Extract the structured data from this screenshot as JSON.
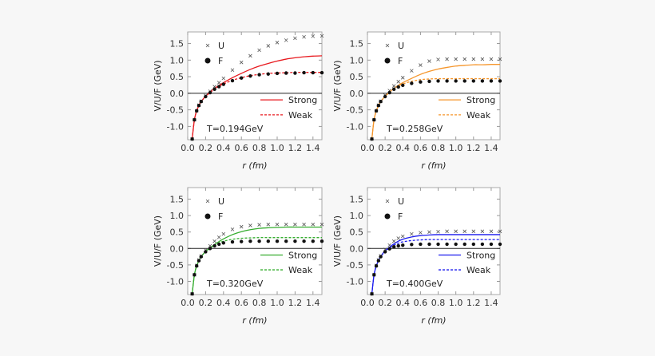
{
  "chart_data": [
    {
      "type": "line",
      "annotation": "T=0.194GeV",
      "xlabel": "r (fm)",
      "ylabel": "V/U/F (GeV)",
      "xlim": [
        0,
        1.5
      ],
      "ylim": [
        -1.4,
        1.85
      ],
      "xticks": [
        "0.0",
        "0.2",
        "0.4",
        "0.6",
        "0.8",
        "1.0",
        "1.2",
        "1.4"
      ],
      "yticks": [
        "-1.0",
        "-0.5",
        "0.0",
        "0.5",
        "1.0",
        "1.5"
      ],
      "color": "#e8191e",
      "x": [
        0.05,
        0.075,
        0.1,
        0.125,
        0.15,
        0.2,
        0.25,
        0.3,
        0.35,
        0.4,
        0.5,
        0.6,
        0.7,
        0.8,
        0.9,
        1.0,
        1.1,
        1.2,
        1.3,
        1.4,
        1.5
      ],
      "series": [
        {
          "name": "U",
          "style": "cross",
          "values": [
            -1.38,
            -0.8,
            -0.53,
            -0.36,
            -0.24,
            -0.07,
            0.06,
            0.2,
            0.32,
            0.45,
            0.7,
            0.93,
            1.13,
            1.3,
            1.43,
            1.53,
            1.6,
            1.66,
            1.7,
            1.72,
            1.73
          ]
        },
        {
          "name": "F",
          "style": "dot",
          "values": [
            -1.38,
            -0.8,
            -0.53,
            -0.37,
            -0.25,
            -0.1,
            0.02,
            0.12,
            0.2,
            0.27,
            0.38,
            0.46,
            0.52,
            0.56,
            0.58,
            0.6,
            0.61,
            0.61,
            0.62,
            0.62,
            0.62
          ]
        },
        {
          "name": "Strong",
          "style": "solid",
          "values": [
            -1.38,
            -0.8,
            -0.53,
            -0.37,
            -0.25,
            -0.09,
            0.04,
            0.15,
            0.24,
            0.32,
            0.47,
            0.6,
            0.72,
            0.82,
            0.9,
            0.97,
            1.03,
            1.07,
            1.1,
            1.12,
            1.13
          ]
        },
        {
          "name": "Weak",
          "style": "dashed",
          "values": [
            -1.38,
            -0.8,
            -0.53,
            -0.37,
            -0.25,
            -0.1,
            0.02,
            0.12,
            0.21,
            0.28,
            0.39,
            0.47,
            0.53,
            0.57,
            0.6,
            0.61,
            0.62,
            0.63,
            0.63,
            0.63,
            0.63
          ]
        }
      ]
    },
    {
      "type": "line",
      "annotation": "T=0.258GeV",
      "xlabel": "r (fm)",
      "ylabel": "V/U/F (GeV)",
      "xlim": [
        0,
        1.5
      ],
      "ylim": [
        -1.4,
        1.85
      ],
      "xticks": [
        "0.0",
        "0.2",
        "0.4",
        "0.6",
        "0.8",
        "1.0",
        "1.2",
        "1.4"
      ],
      "yticks": [
        "-1.0",
        "-0.5",
        "0.0",
        "0.5",
        "1.0",
        "1.5"
      ],
      "color": "#f5962c",
      "x": [
        0.05,
        0.075,
        0.1,
        0.125,
        0.15,
        0.2,
        0.25,
        0.3,
        0.35,
        0.4,
        0.5,
        0.6,
        0.7,
        0.8,
        0.9,
        1.0,
        1.1,
        1.2,
        1.3,
        1.4,
        1.5
      ],
      "series": [
        {
          "name": "U",
          "style": "cross",
          "values": [
            -1.38,
            -0.8,
            -0.53,
            -0.36,
            -0.24,
            -0.06,
            0.08,
            0.22,
            0.35,
            0.47,
            0.68,
            0.85,
            0.97,
            1.02,
            1.03,
            1.03,
            1.03,
            1.03,
            1.03,
            1.03,
            1.03
          ]
        },
        {
          "name": "F",
          "style": "dot",
          "values": [
            -1.38,
            -0.8,
            -0.53,
            -0.37,
            -0.25,
            -0.1,
            0.02,
            0.12,
            0.19,
            0.24,
            0.3,
            0.34,
            0.36,
            0.37,
            0.37,
            0.37,
            0.37,
            0.37,
            0.37,
            0.37,
            0.37
          ]
        },
        {
          "name": "Strong",
          "style": "solid",
          "values": [
            -1.38,
            -0.8,
            -0.53,
            -0.37,
            -0.25,
            -0.09,
            0.04,
            0.15,
            0.24,
            0.32,
            0.45,
            0.57,
            0.66,
            0.73,
            0.78,
            0.82,
            0.84,
            0.86,
            0.86,
            0.87,
            0.87
          ]
        },
        {
          "name": "Weak",
          "style": "dashed",
          "values": [
            -1.38,
            -0.8,
            -0.53,
            -0.37,
            -0.25,
            -0.1,
            0.03,
            0.14,
            0.22,
            0.28,
            0.36,
            0.41,
            0.43,
            0.44,
            0.44,
            0.44,
            0.44,
            0.44,
            0.44,
            0.44,
            0.44
          ]
        }
      ]
    },
    {
      "type": "line",
      "annotation": "T=0.320GeV",
      "xlabel": "r (fm)",
      "ylabel": "V/U/F (GeV)",
      "xlim": [
        0,
        1.5
      ],
      "ylim": [
        -1.4,
        1.85
      ],
      "xticks": [
        "0.0",
        "0.2",
        "0.4",
        "0.6",
        "0.8",
        "1.0",
        "1.2",
        "1.4"
      ],
      "yticks": [
        "-1.0",
        "-0.5",
        "0.0",
        "0.5",
        "1.0",
        "1.5"
      ],
      "color": "#35ad2f",
      "x": [
        0.05,
        0.075,
        0.1,
        0.125,
        0.15,
        0.2,
        0.25,
        0.3,
        0.35,
        0.4,
        0.5,
        0.6,
        0.7,
        0.8,
        0.9,
        1.0,
        1.1,
        1.2,
        1.3,
        1.4,
        1.5
      ],
      "series": [
        {
          "name": "U",
          "style": "cross",
          "values": [
            -1.38,
            -0.8,
            -0.52,
            -0.35,
            -0.23,
            -0.05,
            0.08,
            0.22,
            0.34,
            0.44,
            0.58,
            0.66,
            0.7,
            0.72,
            0.73,
            0.73,
            0.73,
            0.73,
            0.73,
            0.73,
            0.73
          ]
        },
        {
          "name": "F",
          "style": "dot",
          "values": [
            -1.38,
            -0.8,
            -0.53,
            -0.37,
            -0.25,
            -0.1,
            0.0,
            0.08,
            0.13,
            0.17,
            0.2,
            0.21,
            0.22,
            0.22,
            0.22,
            0.22,
            0.22,
            0.22,
            0.22,
            0.22,
            0.22
          ]
        },
        {
          "name": "Strong",
          "style": "solid",
          "values": [
            -1.38,
            -0.8,
            -0.53,
            -0.37,
            -0.25,
            -0.09,
            0.02,
            0.12,
            0.21,
            0.29,
            0.42,
            0.51,
            0.57,
            0.61,
            0.63,
            0.64,
            0.65,
            0.65,
            0.65,
            0.65,
            0.65
          ]
        },
        {
          "name": "Weak",
          "style": "dashed",
          "values": [
            -1.38,
            -0.8,
            -0.53,
            -0.37,
            -0.25,
            -0.1,
            0.01,
            0.1,
            0.17,
            0.22,
            0.28,
            0.31,
            0.32,
            0.33,
            0.33,
            0.33,
            0.33,
            0.33,
            0.33,
            0.33,
            0.33
          ]
        }
      ]
    },
    {
      "type": "line",
      "annotation": "T=0.400GeV",
      "xlabel": "r (fm)",
      "ylabel": "V/U/F (GeV)",
      "xlim": [
        0,
        1.5
      ],
      "ylim": [
        -1.4,
        1.85
      ],
      "xticks": [
        "0.0",
        "0.2",
        "0.4",
        "0.6",
        "0.8",
        "1.0",
        "1.2",
        "1.4"
      ],
      "yticks": [
        "-1.0",
        "-0.5",
        "0.0",
        "0.5",
        "1.0",
        "1.5"
      ],
      "color": "#1c1cee",
      "x": [
        0.05,
        0.075,
        0.1,
        0.125,
        0.15,
        0.2,
        0.25,
        0.3,
        0.35,
        0.4,
        0.5,
        0.6,
        0.7,
        0.8,
        0.9,
        1.0,
        1.1,
        1.2,
        1.3,
        1.4,
        1.5
      ],
      "series": [
        {
          "name": "U",
          "style": "cross",
          "values": [
            -1.38,
            -0.8,
            -0.52,
            -0.35,
            -0.22,
            -0.03,
            0.1,
            0.22,
            0.31,
            0.37,
            0.44,
            0.48,
            0.5,
            0.51,
            0.52,
            0.52,
            0.52,
            0.52,
            0.52,
            0.52,
            0.52
          ]
        },
        {
          "name": "F",
          "style": "dot",
          "values": [
            -1.38,
            -0.8,
            -0.53,
            -0.37,
            -0.25,
            -0.1,
            -0.01,
            0.05,
            0.08,
            0.1,
            0.12,
            0.13,
            0.13,
            0.13,
            0.13,
            0.13,
            0.13,
            0.13,
            0.13,
            0.13,
            0.13
          ]
        },
        {
          "name": "Strong",
          "style": "solid",
          "values": [
            -1.38,
            -0.8,
            -0.53,
            -0.36,
            -0.24,
            -0.07,
            0.04,
            0.14,
            0.22,
            0.28,
            0.35,
            0.39,
            0.41,
            0.42,
            0.42,
            0.42,
            0.42,
            0.42,
            0.42,
            0.42,
            0.42
          ]
        },
        {
          "name": "Weak",
          "style": "dashed",
          "values": [
            -1.38,
            -0.8,
            -0.53,
            -0.37,
            -0.25,
            -0.09,
            0.02,
            0.1,
            0.16,
            0.2,
            0.24,
            0.26,
            0.27,
            0.27,
            0.27,
            0.27,
            0.27,
            0.27,
            0.27,
            0.27,
            0.27
          ]
        }
      ]
    }
  ]
}
